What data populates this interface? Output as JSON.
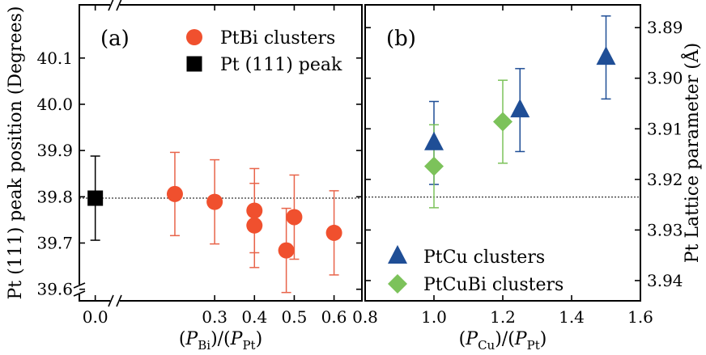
{
  "chart_data": [
    {
      "panel_label": "(a)",
      "type": "scatter",
      "xlabel": {
        "lead": "(",
        "p1": "P",
        "sub1": "Bi",
        "mid": ")/(",
        "p2": "P",
        "sub2": "Pt",
        "tail": ")"
      },
      "ylabel": "Pt (111) peak position (Degrees)",
      "xlim": [
        -0.04,
        0.67
      ],
      "ylim": [
        39.575,
        40.215
      ],
      "x_ticks": [
        "0.0",
        "0.3",
        "0.4",
        "0.5",
        "0.6"
      ],
      "x_tick_values": [
        0.0,
        0.3,
        0.4,
        0.5,
        0.6
      ],
      "y_ticks": [
        "39.6",
        "39.7",
        "39.8",
        "39.9",
        "40.0",
        "40.1"
      ],
      "y_tick_values": [
        39.6,
        39.7,
        39.8,
        39.9,
        40.0,
        40.1
      ],
      "axis_break": true,
      "reference_line": 39.797,
      "legend_position": "top-right",
      "series": [
        {
          "name": "PtBi clusters",
          "marker": "circle",
          "color": "#f0502e",
          "error_color": "#e8644a",
          "points": [
            {
              "x": 0.2,
              "y": 39.806,
              "err": 0.09
            },
            {
              "x": 0.3,
              "y": 39.789,
              "err": 0.091
            },
            {
              "x": 0.4,
              "y": 39.77,
              "err": 0.091
            },
            {
              "x": 0.4,
              "y": 39.738,
              "err": 0.091
            },
            {
              "x": 0.48,
              "y": 39.684,
              "err": 0.091
            },
            {
              "x": 0.5,
              "y": 39.756,
              "err": 0.091
            },
            {
              "x": 0.6,
              "y": 39.722,
              "err": 0.091
            }
          ]
        },
        {
          "name": "Pt (111) peak",
          "marker": "square",
          "color": "#000000",
          "error_color": "#000000",
          "points": [
            {
              "x": 0.0,
              "y": 39.797,
              "err": 0.091
            }
          ]
        }
      ]
    },
    {
      "panel_label": "(b)",
      "type": "scatter",
      "xlabel": {
        "lead": "(",
        "p1": "P",
        "sub1": "Cu",
        "mid": ")/(",
        "p2": "P",
        "sub2": "Pt",
        "tail": ")"
      },
      "ylabel": "Pt Lattice parameter (Å)",
      "xlim": [
        0.8,
        1.6
      ],
      "ylim": [
        3.944,
        3.8855
      ],
      "y_axis_side": "right",
      "x_ticks": [
        "0.8",
        "1.0",
        "1.2",
        "1.4",
        "1.6"
      ],
      "x_tick_values": [
        0.8,
        1.0,
        1.2,
        1.4,
        1.6
      ],
      "y_ticks": [
        "3.89",
        "3.90",
        "3.91",
        "3.92",
        "3.93",
        "3.94"
      ],
      "y_tick_values": [
        3.89,
        3.9,
        3.91,
        3.92,
        3.93,
        3.94
      ],
      "reference_line": 3.9235,
      "legend_position": "bottom-left",
      "series": [
        {
          "name": "PtCu clusters",
          "marker": "triangle",
          "color": "#1f4e96",
          "error_color": "#1f4e96",
          "points": [
            {
              "x": 1.0,
              "y": 3.9128,
              "err": 0.0082
            },
            {
              "x": 1.25,
              "y": 3.9063,
              "err": 0.0082
            },
            {
              "x": 1.5,
              "y": 3.8959,
              "err": 0.0082
            }
          ]
        },
        {
          "name": "PtCuBi clusters",
          "marker": "diamond",
          "color": "#7cc25a",
          "error_color": "#7cc25a",
          "points": [
            {
              "x": 1.0,
              "y": 3.9174,
              "err": 0.0082
            },
            {
              "x": 1.2,
              "y": 3.9086,
              "err": 0.0082
            }
          ]
        }
      ]
    }
  ]
}
